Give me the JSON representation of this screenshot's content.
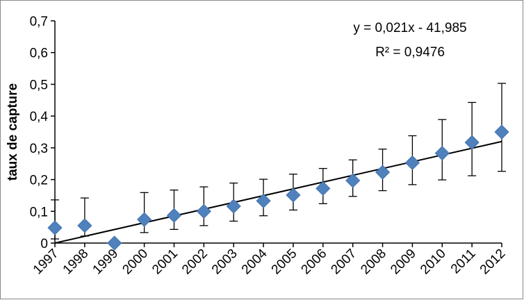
{
  "chart_data": {
    "type": "scatter",
    "xlabel": "",
    "ylabel": "taux de capture",
    "categories": [
      "1997",
      "1998",
      "1999",
      "2000",
      "2001",
      "2002",
      "2003",
      "2004",
      "2005",
      "2006",
      "2007",
      "2008",
      "2009",
      "2010",
      "2011",
      "2012"
    ],
    "yticks": [
      "0",
      "0,1",
      "0,2",
      "0,3",
      "0,4",
      "0,5",
      "0,6",
      "0,7"
    ],
    "ylim": [
      0,
      0.7
    ],
    "series": [
      {
        "marker": "diamond",
        "color": "#4f81bd",
        "values": [
          0.048,
          0.055,
          0.0,
          0.074,
          0.087,
          0.1,
          0.116,
          0.133,
          0.151,
          0.172,
          0.197,
          0.223,
          0.253,
          0.283,
          0.317,
          0.35
        ],
        "err_low": [
          0.013,
          0.022,
          null,
          0.033,
          0.043,
          0.055,
          0.069,
          0.086,
          0.104,
          0.124,
          0.147,
          0.165,
          0.184,
          0.199,
          0.212,
          0.226
        ],
        "err_high": [
          0.136,
          0.142,
          null,
          0.159,
          0.167,
          0.177,
          0.189,
          0.201,
          0.217,
          0.235,
          0.262,
          0.296,
          0.338,
          0.389,
          0.443,
          0.503
        ]
      }
    ],
    "trendline": {
      "type": "linear",
      "start": [
        1997,
        0.0
      ],
      "end": [
        2012,
        0.32
      ]
    },
    "annotations": {
      "equation": "y = 0,021x - 41,985",
      "r2": "R² = 0,9476"
    },
    "grid": false,
    "legend": "none"
  }
}
